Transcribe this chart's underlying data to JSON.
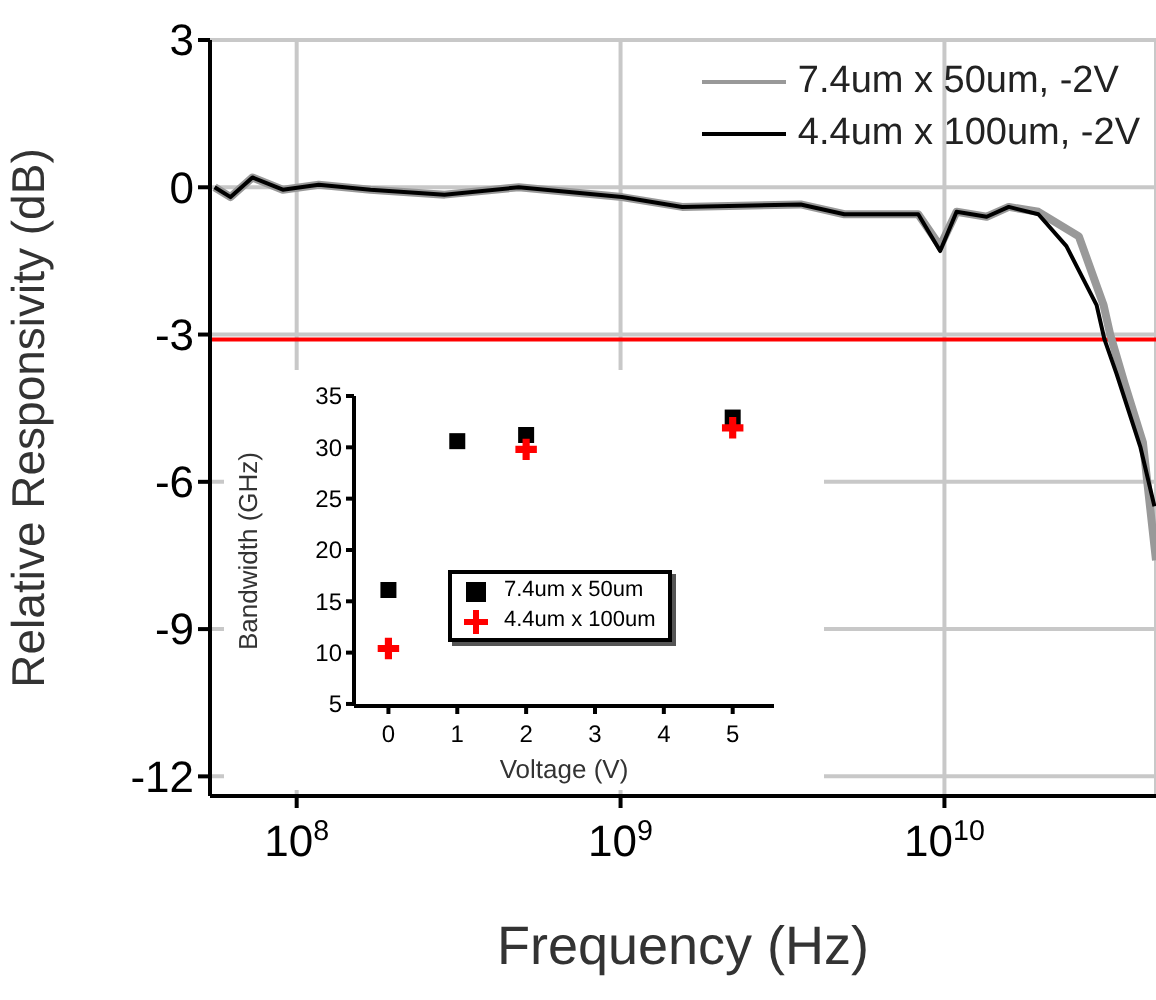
{
  "chart_data": [
    {
      "type": "line",
      "xlabel": "Frequency (Hz)",
      "ylabel": "Relative Responsivity (dB)",
      "log": "x",
      "grid": true,
      "legend": "top right",
      "marker": "none",
      "xlim": [
        54000000.0,
        45000000000.0
      ],
      "xticks": [
        {
          "value": 100000000.0,
          "label": "10$^{8}$"
        },
        {
          "value": 1000000000.0,
          "label": "10$^{9}$"
        },
        {
          "value": 10000000000.0,
          "label": "10$^{10}$"
        }
      ],
      "ylim": [
        -12.4,
        3
      ],
      "yticks": [
        3,
        0,
        -3,
        -6,
        -9,
        -12
      ],
      "ref_lines": [
        {
          "axis": "y",
          "value": -3.1,
          "color": "#ff0000"
        }
      ],
      "series": [
        {
          "name": "7.4um x 50um, -2V",
          "color": "#999999",
          "x": [
            55800000.0,
            62500000.0,
            73000000.0,
            90600000.0,
            117000000.0,
            169000000.0,
            286000000.0,
            485000000.0,
            1010000000.0,
            1550000000.0,
            3600000000.0,
            4910000000.0,
            8300000000.0,
            9700000000.0,
            10900000000.0,
            13500000000.0,
            15800000000.0,
            19500000000.0,
            26000000000.0,
            31000000000.0,
            32500000000.0,
            36000000000.0,
            41000000000.0,
            45000000000.0
          ],
          "values": [
            0,
            -0.2,
            0.2,
            -0.05,
            0.05,
            -0.05,
            -0.15,
            0,
            -0.2,
            -0.4,
            -0.35,
            -0.55,
            -0.55,
            -1.2,
            -0.5,
            -0.6,
            -0.4,
            -0.5,
            -1.0,
            -2.4,
            -3.0,
            -4.0,
            -5.2,
            -7.6
          ]
        },
        {
          "name": "4.4um x 100um, -2V",
          "color": "#000000",
          "x": [
            55800000.0,
            62500000.0,
            73000000.0,
            90600000.0,
            117000000.0,
            169000000.0,
            286000000.0,
            485000000.0,
            1010000000.0,
            1550000000.0,
            3600000000.0,
            4910000000.0,
            8300000000.0,
            9700000000.0,
            10900000000.0,
            13500000000.0,
            15800000000.0,
            19500000000.0,
            23800000000.0,
            29500000000.0,
            31200000000.0,
            34000000000.0,
            40300000000.0,
            44500000000.0
          ],
          "values": [
            0,
            -0.2,
            0.2,
            -0.05,
            0.05,
            -0.05,
            -0.15,
            0,
            -0.2,
            -0.4,
            -0.35,
            -0.55,
            -0.55,
            -1.3,
            -0.5,
            -0.6,
            -0.4,
            -0.55,
            -1.2,
            -2.4,
            -3.1,
            -3.8,
            -5.3,
            -6.5
          ]
        }
      ]
    },
    {
      "type": "scatter",
      "xlabel": "Voltage (V)",
      "ylabel": "Bandwidth (GHz)",
      "legend": "bottom right",
      "xlim": [
        -0.5,
        5.6
      ],
      "xticks": [
        0,
        1,
        2,
        3,
        4,
        5
      ],
      "ylim": [
        4.8,
        35
      ],
      "yticks": [
        5,
        10,
        15,
        20,
        25,
        30,
        35
      ],
      "series": [
        {
          "name": "7.4um x 50um",
          "color": "#000000",
          "marker": "square",
          "x": [
            0,
            1,
            2,
            5
          ],
          "values": [
            16.1,
            30.6,
            31.2,
            32.9
          ]
        },
        {
          "name": "4.4um x 100um",
          "color": "#ff0000",
          "marker": "cross",
          "x": [
            0,
            2,
            5
          ],
          "values": [
            10.4,
            29.8,
            31.9
          ]
        }
      ]
    }
  ]
}
